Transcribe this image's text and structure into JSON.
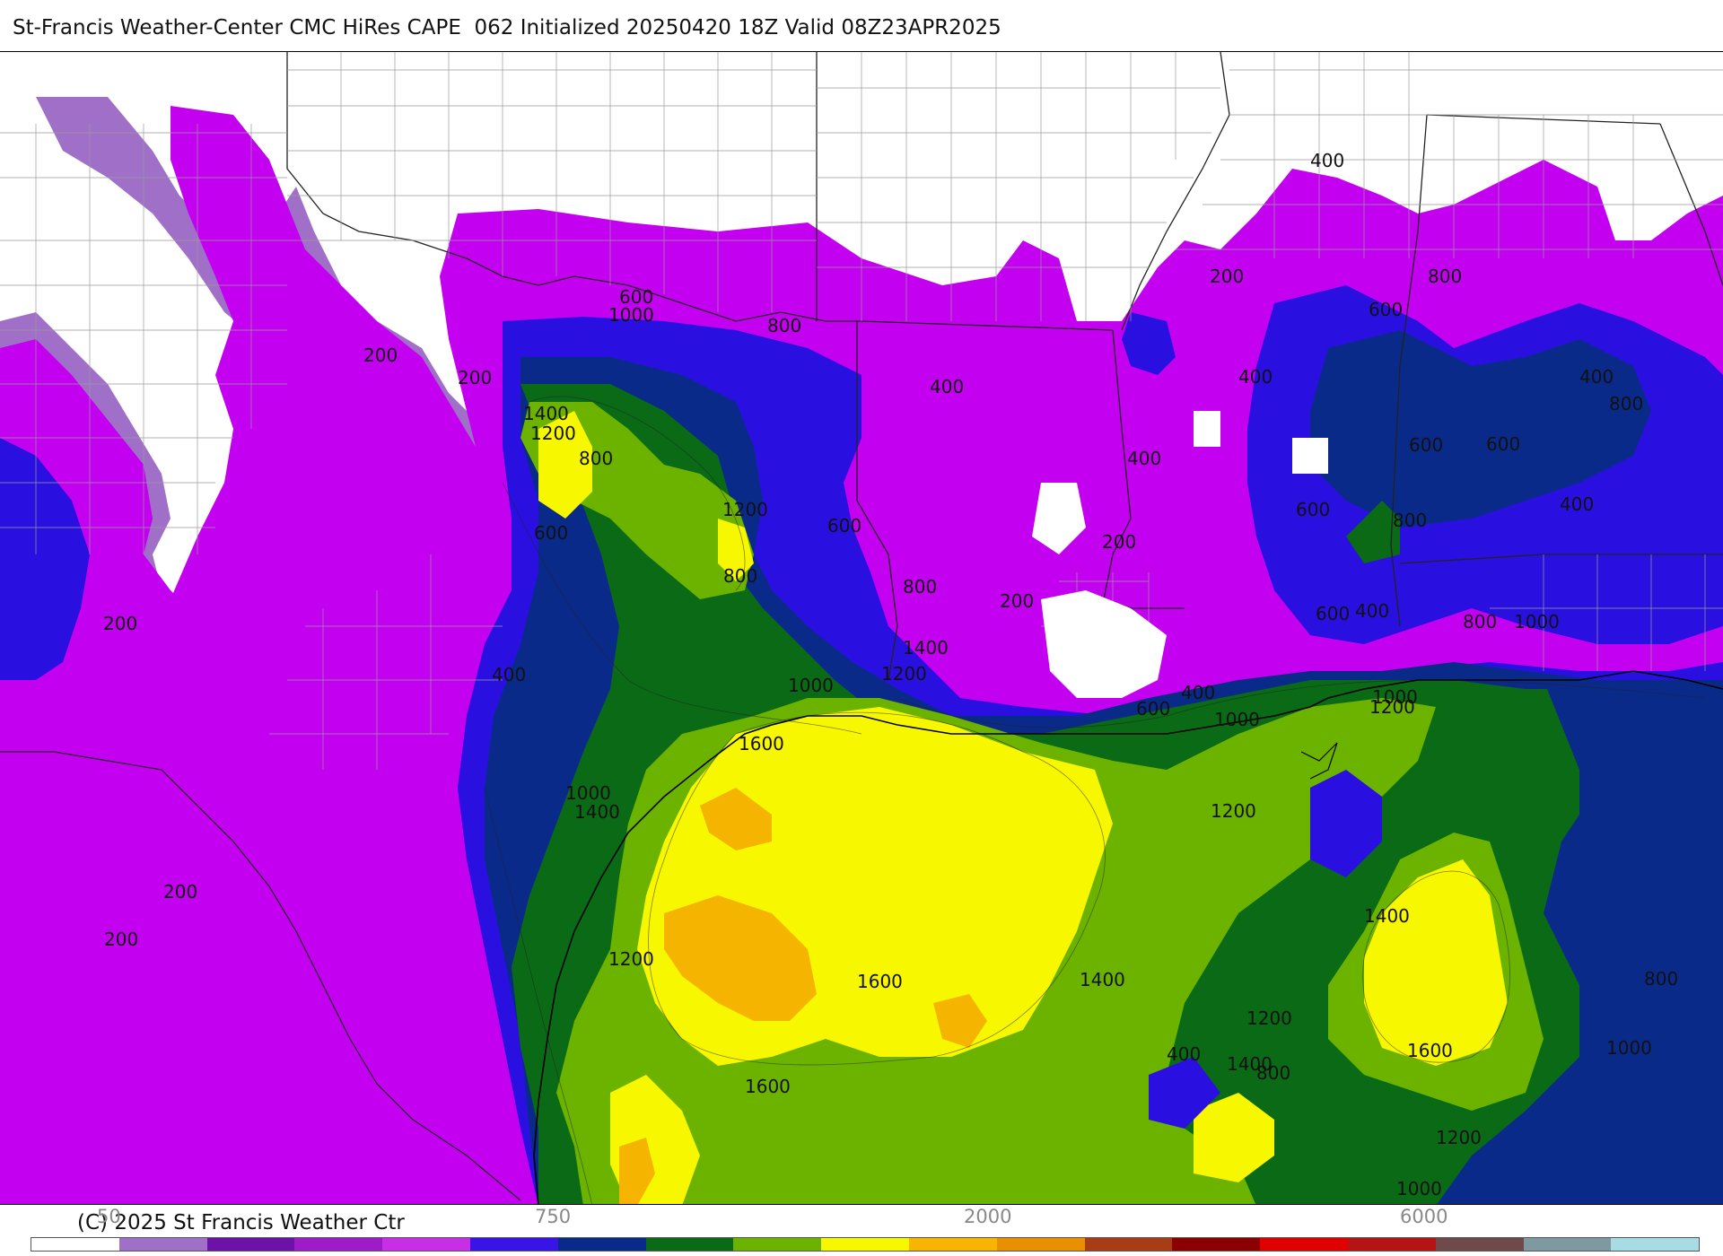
{
  "header": {
    "title": "St-Francis Weather-Center CMC HiRes CAPE  062 Initialized 20250420 18Z Valid 08Z23APR2025"
  },
  "colors": {
    "c50": "#9a6ad0",
    "c100": "#6a13a6",
    "c200": "#c41fe6",
    "c400": "#c400f0",
    "c600": "#1900e0",
    "c800": "#082290",
    "c1000": "#056a14",
    "c1200": "#6cb300",
    "c1400": "#f7f700",
    "c1600": "#f5b400",
    "c2000": "#e88a00"
  },
  "contour_labels": [
    "400",
    "600",
    "1000",
    "800",
    "200",
    "200",
    "1400",
    "1200",
    "800",
    "1200",
    "600",
    "600",
    "800",
    "200",
    "400",
    "800",
    "1400",
    "1000",
    "1200",
    "600",
    "400",
    "1000",
    "1600",
    "1000",
    "1400",
    "200",
    "200",
    "1200",
    "1600",
    "1600",
    "1400",
    "200",
    "400",
    "400",
    "600",
    "400",
    "600",
    "800",
    "400",
    "200",
    "400",
    "200",
    "600",
    "800",
    "600",
    "800",
    "600",
    "400",
    "800",
    "1000",
    "1200",
    "1000",
    "1200",
    "1400",
    "1200",
    "1400",
    "1600",
    "800",
    "1000",
    "1200",
    "1000",
    "400",
    "800"
  ],
  "footer": {
    "copyright": "(C) 2025 St Francis Weather Ctr",
    "colorbar": {
      "colors": [
        "#ffffff",
        "#a070c8",
        "#6d12a8",
        "#9d1cc8",
        "#c82ee6",
        "#3a14e6",
        "#0a2a8a",
        "#0a6a16",
        "#6cb300",
        "#f7f700",
        "#f7b400",
        "#e89000",
        "#a83c14",
        "#8c0000",
        "#e00000",
        "#b41414",
        "#6e4a4a",
        "#7e9aa0",
        "#a8dce4"
      ],
      "labels": [
        "50",
        "750",
        "2000",
        "6000"
      ]
    }
  }
}
